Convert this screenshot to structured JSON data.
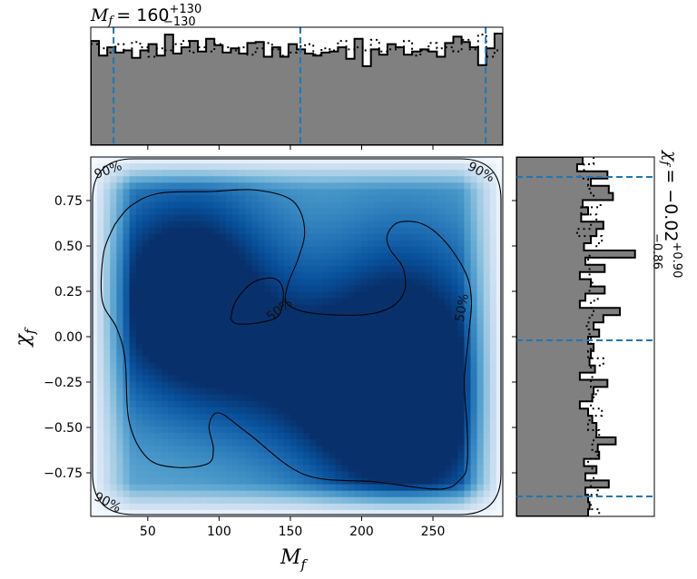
{
  "chart_data": [
    {
      "type": "heatmap",
      "panel": "joint-density",
      "xlabel_symbol": "M",
      "xlabel_sub": "f",
      "ylabel_symbol": "χ",
      "ylabel_sub": "f",
      "xlim": [
        10,
        299
      ],
      "ylim": [
        -0.99,
        0.99
      ],
      "xticks": [
        50,
        100,
        150,
        200,
        250
      ],
      "yticks": [
        -0.75,
        -0.5,
        -0.25,
        0.0,
        0.25,
        0.5,
        0.75
      ],
      "ytick_labels": [
        "−0.75",
        "−0.50",
        "−0.25",
        "0.00",
        "0.25",
        "0.50",
        "0.75"
      ],
      "colormap": "Blues",
      "density_peaks": [
        {
          "x": 78,
          "y": 0.45,
          "w": 1.0
        },
        {
          "x": 240,
          "y": -0.18,
          "w": 0.95
        },
        {
          "x": 235,
          "y": -0.68,
          "w": 0.85
        },
        {
          "x": 120,
          "y": -0.12,
          "w": 0.7
        },
        {
          "x": 190,
          "y": -0.3,
          "w": 0.75
        },
        {
          "x": 60,
          "y": 0.0,
          "w": 0.7
        },
        {
          "x": 230,
          "y": 0.35,
          "w": 0.6
        }
      ],
      "contours": [
        {
          "label": "50%",
          "label_positions": [
            [
              142,
              0.15
            ],
            [
              270,
              0.16
            ]
          ]
        },
        {
          "label": "90%",
          "label_positions": [
            [
              22,
              0.92
            ],
            [
              284,
              0.91
            ],
            [
              22,
              -0.91
            ]
          ]
        }
      ],
      "contour_50_outer": [
        [
          27,
          0.62
        ],
        [
          38,
          0.72
        ],
        [
          58,
          0.79
        ],
        [
          95,
          0.8
        ],
        [
          123,
          0.81
        ],
        [
          147,
          0.77
        ],
        [
          157,
          0.69
        ],
        [
          160,
          0.56
        ],
        [
          155,
          0.42
        ],
        [
          148,
          0.28
        ],
        [
          148,
          0.18
        ],
        [
          165,
          0.13
        ],
        [
          200,
          0.12
        ],
        [
          220,
          0.16
        ],
        [
          230,
          0.25
        ],
        [
          229,
          0.38
        ],
        [
          220,
          0.48
        ],
        [
          218,
          0.56
        ],
        [
          226,
          0.63
        ],
        [
          243,
          0.62
        ],
        [
          259,
          0.52
        ],
        [
          273,
          0.35
        ],
        [
          277,
          0.2
        ],
        [
          275,
          0.0
        ],
        [
          272,
          -0.25
        ],
        [
          274,
          -0.5
        ],
        [
          274,
          -0.7
        ],
        [
          270,
          -0.78
        ],
        [
          255,
          -0.84
        ],
        [
          210,
          -0.8
        ],
        [
          160,
          -0.76
        ],
        [
          120,
          -0.53
        ],
        [
          100,
          -0.42
        ],
        [
          93,
          -0.49
        ],
        [
          96,
          -0.62
        ],
        [
          92,
          -0.7
        ],
        [
          70,
          -0.72
        ],
        [
          50,
          -0.67
        ],
        [
          37,
          -0.47
        ],
        [
          34,
          -0.12
        ],
        [
          28,
          0.05
        ],
        [
          18,
          0.2
        ],
        [
          19,
          0.46
        ],
        [
          27,
          0.62
        ]
      ],
      "contour_50_inner": [
        [
          108,
          0.1
        ],
        [
          112,
          0.2
        ],
        [
          124,
          0.3
        ],
        [
          139,
          0.32
        ],
        [
          145,
          0.25
        ],
        [
          142,
          0.12
        ],
        [
          130,
          0.08
        ],
        [
          113,
          0.07
        ],
        [
          108,
          0.1
        ]
      ]
    },
    {
      "type": "bar",
      "panel": "top-marginal",
      "title_symbol": "M",
      "title_sub": "f",
      "title_value": "= 160",
      "title_sup": "+130",
      "title_lower": "−130",
      "xlim": [
        10,
        299
      ],
      "bins": 50,
      "ymax": 1.12,
      "values": [
        0.99,
        0.85,
        0.93,
        0.88,
        0.9,
        0.83,
        0.9,
        0.96,
        0.85,
        1.05,
        0.87,
        0.93,
        0.99,
        0.89,
        1.01,
        0.95,
        0.88,
        0.92,
        0.87,
        0.97,
        0.98,
        0.84,
        0.93,
        0.84,
        0.96,
        0.91,
        0.87,
        0.85,
        0.88,
        0.89,
        0.93,
        0.82,
        1.01,
        0.75,
        0.91,
        0.86,
        0.96,
        0.93,
        0.86,
        0.89,
        0.91,
        0.89,
        0.84,
        0.97,
        1.03,
        0.98,
        0.93,
        0.76,
        0.92,
        1.06
      ],
      "values_dotted": [
        0.96,
        0.92,
        0.88,
        0.96,
        0.9,
        0.98,
        0.93,
        0.84,
        0.92,
        0.9,
        0.96,
        0.99,
        0.88,
        0.93,
        0.89,
        0.96,
        0.93,
        0.9,
        0.93,
        0.86,
        0.92,
        0.97,
        0.91,
        0.85,
        0.88,
        0.94,
        0.96,
        0.86,
        0.92,
        0.9,
        0.99,
        0.91,
        0.93,
        0.9,
        1.0,
        0.89,
        0.91,
        0.93,
        0.99,
        0.85,
        0.9,
        0.97,
        0.92,
        0.93,
        0.89,
        1.0,
        0.91,
        1.05,
        0.84,
        0.9
      ],
      "quantiles": [
        26,
        157,
        287
      ],
      "quantile_color": "#1f77b4"
    },
    {
      "type": "bar",
      "panel": "right-marginal",
      "title_symbol": "χ",
      "title_sub": "f",
      "title_value": "= −0.02",
      "title_sup": "+0.90",
      "title_lower": "−0.86",
      "ylim": [
        -0.99,
        0.99
      ],
      "bins": 50,
      "xmax": 1.0,
      "values": [
        0.48,
        0.44,
        0.66,
        0.54,
        0.67,
        0.7,
        0.48,
        0.52,
        0.47,
        0.63,
        0.58,
        0.54,
        0.49,
        0.86,
        0.5,
        0.64,
        0.46,
        0.54,
        0.64,
        0.5,
        0.46,
        0.75,
        0.63,
        0.56,
        0.6,
        0.52,
        0.56,
        0.54,
        0.53,
        0.57,
        0.46,
        0.66,
        0.56,
        0.55,
        0.46,
        0.52,
        0.55,
        0.58,
        0.58,
        0.72,
        0.59,
        0.6,
        0.49,
        0.58,
        0.5,
        0.67,
        0.5,
        0.52,
        0.53,
        0.52
      ],
      "values_dotted": [
        0.56,
        0.49,
        0.46,
        0.52,
        0.53,
        0.56,
        0.61,
        0.47,
        0.58,
        0.54,
        0.44,
        0.62,
        0.58,
        0.53,
        0.52,
        0.53,
        0.53,
        0.55,
        0.53,
        0.59,
        0.54,
        0.56,
        0.53,
        0.51,
        0.53,
        0.54,
        0.54,
        0.52,
        0.63,
        0.54,
        0.55,
        0.54,
        0.59,
        0.56,
        0.54,
        0.62,
        0.53,
        0.52,
        0.6,
        0.56,
        0.55,
        0.59,
        0.52,
        0.55,
        0.56,
        0.54,
        0.59,
        0.52,
        0.54,
        0.6
      ],
      "quantiles": [
        -0.88,
        -0.02,
        0.88
      ],
      "quantile_color": "#1f77b4"
    }
  ]
}
